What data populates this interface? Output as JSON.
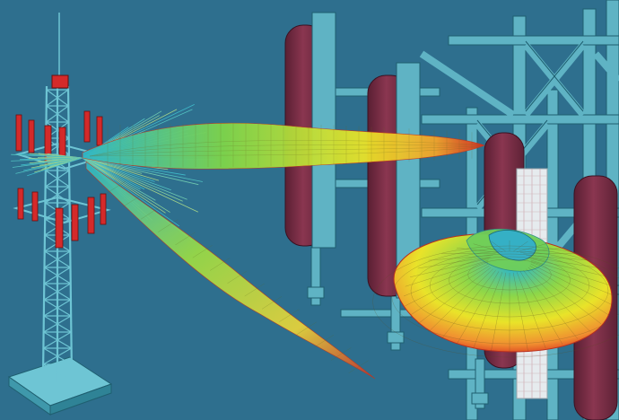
{
  "scene": {
    "background": "#2e6f8e",
    "colors": {
      "steel": "#6ec5d4",
      "steel_dark": "#3f98ab",
      "steel_edge": "#1f5f70",
      "panel_red": "#d42a2a",
      "panel_maroon": "#7a2f45",
      "panel_maroon_dark": "#5a1f33",
      "panel_white": "#e6ebee",
      "gradient_cool": "#2fb6c8",
      "gradient_mid": "#e9e329",
      "gradient_hot": "#d82a1f"
    },
    "icons": {
      "left": "cell-tower-icon",
      "right_top": "sector-antenna-icon",
      "right_bottom": "radiation-pattern-icon"
    }
  }
}
